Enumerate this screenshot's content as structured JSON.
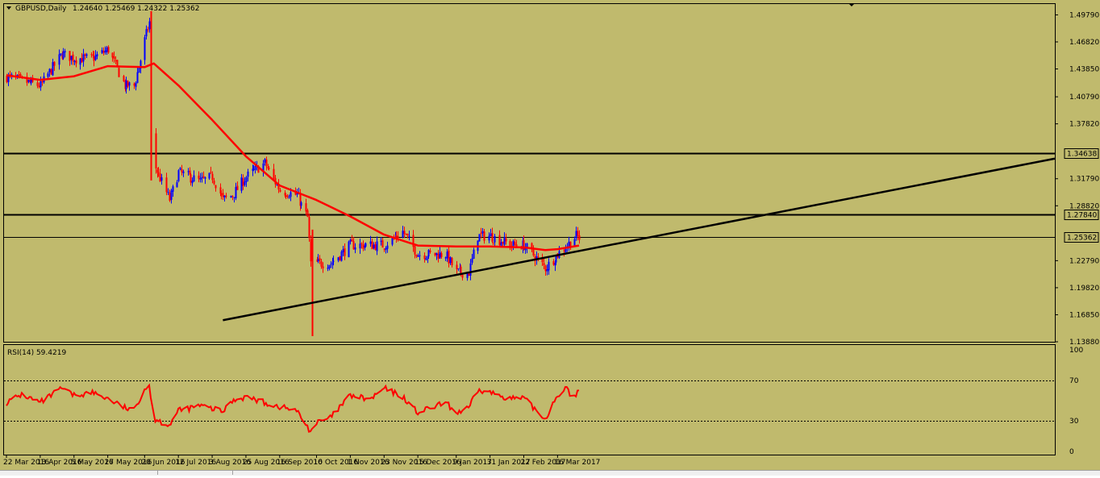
{
  "header": {
    "symbol": "GBPUSD,Daily",
    "ohlc": "1.24640 1.25469 1.24322 1.25362"
  },
  "colors": {
    "background": "#c0ba6d",
    "bull_candle": "#0000ff",
    "bear_candle": "#ff0000",
    "moving_average": "#ff0000",
    "rsi_line": "#ff0000",
    "lines": "#000000"
  },
  "chart_data": [
    {
      "type": "candlestick",
      "title": "GBPUSD,Daily",
      "price_ticks": [
        "1.49790",
        "1.46820",
        "1.43850",
        "1.40790",
        "1.37820",
        "1.31790",
        "1.28820",
        "1.22790",
        "1.19820",
        "1.16850",
        "1.13880"
      ],
      "ylim": [
        1.1388,
        1.5098
      ],
      "x_dates": [
        "22 Mar 2016",
        "13 Apr 2016",
        "5 May 2016",
        "27 May 2016",
        "20 Jun 2016",
        "12 Jul 2016",
        "3 Aug 2016",
        "25 Aug 2016",
        "16 Sep 2016",
        "10 Oct 2016",
        "1 Nov 2016",
        "23 Nov 2016",
        "15 Dec 2016",
        "9 Jan 2017",
        "31 Jan 2017",
        "22 Feb 2017",
        "16 Mar 2017"
      ],
      "horizontal_levels": [
        {
          "value": 1.34638,
          "label": "1.34638"
        },
        {
          "value": 1.2784,
          "label": "1.27840"
        },
        {
          "value": 1.25362,
          "label": "1.25362"
        }
      ],
      "trendline": {
        "start": [
          "10 Aug 2016",
          1.1625
        ],
        "end": [
          "30 Mar 2017",
          1.2385
        ]
      },
      "price_path": [
        [
          "22 Mar 2016",
          1.43
        ],
        [
          "13 Apr 2016",
          1.42
        ],
        [
          "27 Apr 2016",
          1.455
        ],
        [
          "5 May 2016",
          1.45
        ],
        [
          "17 May 2016",
          1.45
        ],
        [
          "27 May 2016",
          1.46
        ],
        [
          "7 Jun 2016",
          1.42
        ],
        [
          "13 Jun 2016",
          1.42
        ],
        [
          "20 Jun 2016",
          1.47
        ],
        [
          "23 Jun 2016",
          1.49
        ],
        [
          "24 Jun 2016",
          1.365
        ],
        [
          "27 Jun 2016",
          1.33
        ],
        [
          "6 Jul 2016",
          1.295
        ],
        [
          "12 Jul 2016",
          1.325
        ],
        [
          "26 Jul 2016",
          1.315
        ],
        [
          "3 Aug 2016",
          1.32
        ],
        [
          "10 Aug 2016",
          1.295
        ],
        [
          "16 Aug 2016",
          1.3
        ],
        [
          "25 Aug 2016",
          1.32
        ],
        [
          "6 Sep 2016",
          1.335
        ],
        [
          "16 Sep 2016",
          1.305
        ],
        [
          "27 Sep 2016",
          1.3
        ],
        [
          "4 Oct 2016",
          1.275
        ],
        [
          "6 Oct 2016",
          1.225
        ],
        [
          "10 Oct 2016",
          1.225
        ],
        [
          "19 Oct 2016",
          1.225
        ],
        [
          "1 Nov 2016",
          1.245
        ],
        [
          "23 Nov 2016",
          1.245
        ],
        [
          "5 Dec 2016",
          1.26
        ],
        [
          "15 Dec 2016",
          1.235
        ],
        [
          "2 Jan 2017",
          1.235
        ],
        [
          "9 Jan 2017",
          1.215
        ],
        [
          "17 Jan 2017",
          1.215
        ],
        [
          "23 Jan 2017",
          1.255
        ],
        [
          "31 Jan 2017",
          1.255
        ],
        [
          "14 Feb 2017",
          1.245
        ],
        [
          "22 Feb 2017",
          1.245
        ],
        [
          "8 Mar 2017",
          1.22
        ],
        [
          "16 Mar 2017",
          1.235
        ],
        [
          "28 Mar 2017",
          1.255
        ],
        [
          "30 Mar 2017",
          1.253
        ]
      ],
      "moving_average": [
        [
          "22 Mar 2016",
          1.4315
        ],
        [
          "13 Apr 2016",
          1.4265
        ],
        [
          "5 May 2016",
          1.4305
        ],
        [
          "27 May 2016",
          1.4415
        ],
        [
          "20 Jun 2016",
          1.4405
        ],
        [
          "26 Jun 2016",
          1.4445
        ],
        [
          "12 Jul 2016",
          1.4205
        ],
        [
          "3 Aug 2016",
          1.3825
        ],
        [
          "25 Aug 2016",
          1.3425
        ],
        [
          "16 Sep 2016",
          1.3105
        ],
        [
          "10 Oct 2016",
          1.2945
        ],
        [
          "1 Nov 2016",
          1.2765
        ],
        [
          "23 Nov 2016",
          1.2565
        ],
        [
          "15 Dec 2016",
          1.2445
        ],
        [
          "9 Jan 2017",
          1.2435
        ],
        [
          "31 Jan 2017",
          1.2435
        ],
        [
          "22 Feb 2017",
          1.2425
        ],
        [
          "8 Mar 2017",
          1.2395
        ],
        [
          "16 Mar 2017",
          1.2405
        ],
        [
          "30 Mar 2017",
          1.2445
        ]
      ]
    },
    {
      "type": "line",
      "title": "RSI(14) 59.4219",
      "ticks": [
        "100",
        "70",
        "30",
        "0"
      ],
      "ylim": [
        0,
        100
      ],
      "levels": [
        70,
        30
      ],
      "series": [
        {
          "values": [
            [
              "22 Mar 2016",
              48
            ],
            [
              "1 Apr 2016",
              56
            ],
            [
              "13 Apr 2016",
              48
            ],
            [
              "27 Apr 2016",
              62
            ],
            [
              "5 May 2016",
              55
            ],
            [
              "17 May 2016",
              58
            ],
            [
              "27 May 2016",
              52
            ],
            [
              "7 Jun 2016",
              43
            ],
            [
              "13 Jun 2016",
              40
            ],
            [
              "20 Jun 2016",
              62
            ],
            [
              "23 Jun 2016",
              65
            ],
            [
              "26 Jun 2016",
              32
            ],
            [
              "6 Jul 2016",
              26
            ],
            [
              "12 Jul 2016",
              40
            ],
            [
              "26 Jul 2016",
              45
            ],
            [
              "3 Aug 2016",
              42
            ],
            [
              "10 Aug 2016",
              39
            ],
            [
              "16 Aug 2016",
              50
            ],
            [
              "25 Aug 2016",
              54
            ],
            [
              "6 Sep 2016",
              48
            ],
            [
              "16 Sep 2016",
              44
            ],
            [
              "27 Sep 2016",
              40
            ],
            [
              "6 Oct 2016",
              20
            ],
            [
              "10 Oct 2016",
              28
            ],
            [
              "19 Oct 2016",
              33
            ],
            [
              "1 Nov 2016",
              55
            ],
            [
              "14 Nov 2016",
              51
            ],
            [
              "23 Nov 2016",
              62
            ],
            [
              "5 Dec 2016",
              54
            ],
            [
              "15 Dec 2016",
              38
            ],
            [
              "2 Jan 2017",
              48
            ],
            [
              "9 Jan 2017",
              38
            ],
            [
              "17 Jan 2017",
              42
            ],
            [
              "23 Jan 2017",
              60
            ],
            [
              "31 Jan 2017",
              58
            ],
            [
              "14 Feb 2017",
              52
            ],
            [
              "22 Feb 2017",
              52
            ],
            [
              "8 Mar 2017",
              32
            ],
            [
              "16 Mar 2017",
              56
            ],
            [
              "22 Mar 2017",
              62
            ],
            [
              "25 Mar 2017",
              52
            ],
            [
              "30 Mar 2017",
              59.42
            ]
          ]
        }
      ]
    }
  ]
}
